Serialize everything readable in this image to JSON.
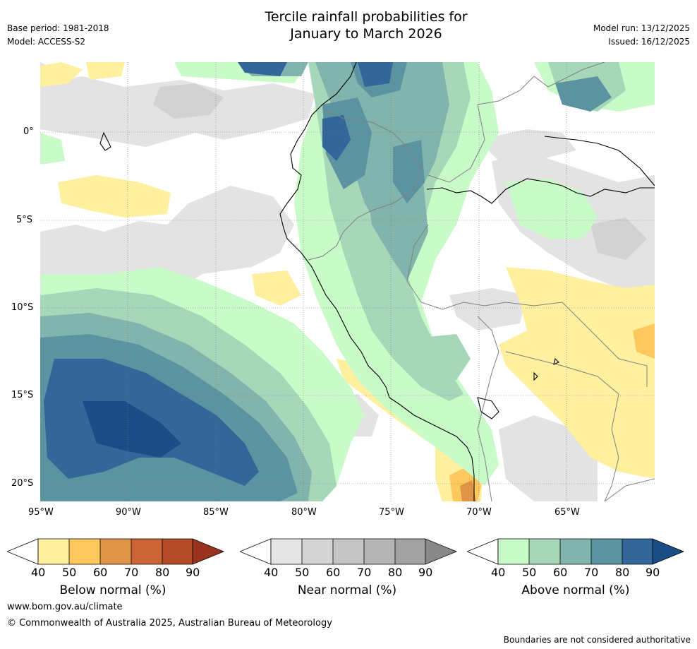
{
  "header": {
    "title_line1": "Tercile rainfall probabilities for",
    "title_line2": "January to March 2026",
    "base_period": "Base period: 1981-2018",
    "model": "Model: ACCESS-S2",
    "model_run": "Model run: 13/12/2025",
    "issued": "Issued: 16/12/2025"
  },
  "map": {
    "lat_labels": [
      "0°",
      "5°S",
      "10°S",
      "15°S",
      "20°S"
    ],
    "lon_labels": [
      "95°W",
      "90°W",
      "85°W",
      "80°W",
      "75°W",
      "70°W",
      "65°W"
    ]
  },
  "colorbars": [
    {
      "label": "Below normal (%)",
      "ticks": [
        "40",
        "50",
        "60",
        "70",
        "80",
        "90"
      ],
      "colors": [
        "#fff0a0",
        "#fdc85e",
        "#e09448",
        "#cb6535",
        "#b24b26",
        "#99331d"
      ]
    },
    {
      "label": "Near normal (%)",
      "ticks": [
        "40",
        "50",
        "60",
        "70",
        "80",
        "90"
      ],
      "colors": [
        "#e5e5e5",
        "#d5d5d5",
        "#c5c5c5",
        "#b5b5b5",
        "#a2a2a2",
        "#888888"
      ]
    },
    {
      "label": "Above normal (%)",
      "ticks": [
        "40",
        "50",
        "60",
        "70",
        "80",
        "90"
      ],
      "colors": [
        "#c9fbc9",
        "#a6d7b8",
        "#80b4ac",
        "#5b93a1",
        "#336699",
        "#1a4d85"
      ]
    }
  ],
  "footer": {
    "website": "www.bom.gov.au/climate",
    "copyright": "© Commonwealth of Australia 2025, Australian Bureau of Meteorology",
    "disclaimer": "Boundaries are not considered authoritative"
  }
}
